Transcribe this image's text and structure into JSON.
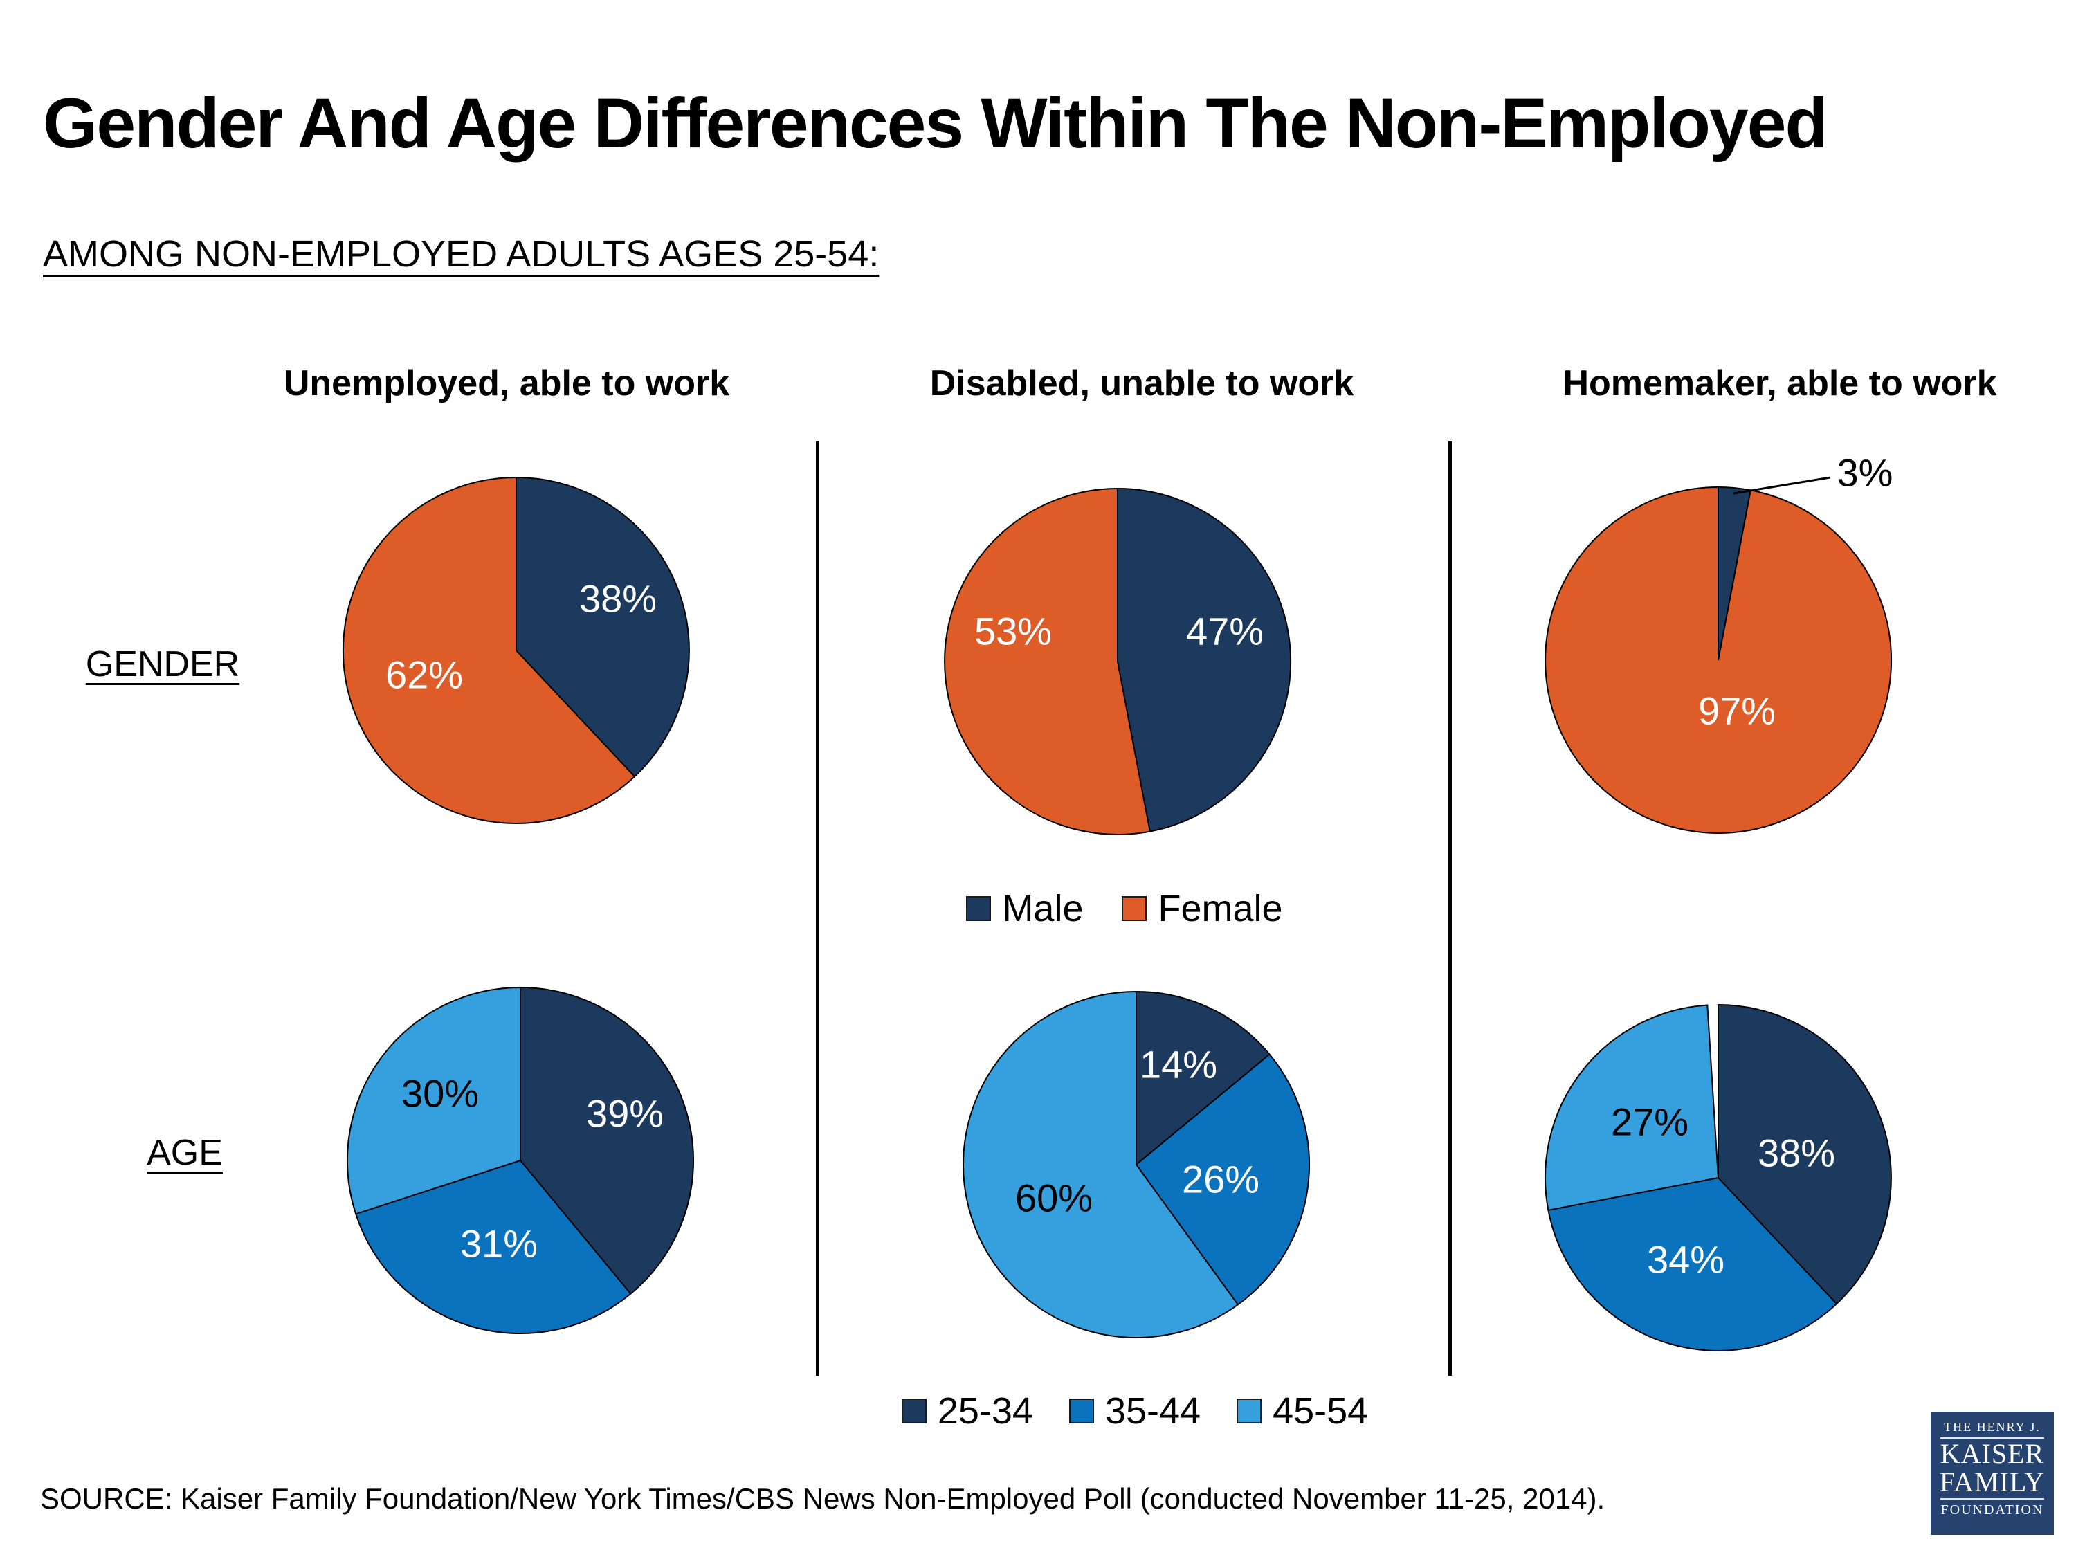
{
  "title": "Gender And Age Differences Within The Non-Employed",
  "subtitle": "AMONG NON-EMPLOYED ADULTS AGES 25-54:",
  "columns": [
    "Unemployed, able to work",
    "Disabled, unable to work",
    "Homemaker, able to work"
  ],
  "rows": [
    "GENDER",
    "AGE"
  ],
  "legend_gender": [
    {
      "label": "Male",
      "color": "#1C3A5E"
    },
    {
      "label": "Female",
      "color": "#DD5C27"
    }
  ],
  "legend_age": [
    {
      "label": "25-34",
      "color": "#1C3A5E"
    },
    {
      "label": "35-44",
      "color": "#0B72BE"
    },
    {
      "label": "45-54",
      "color": "#36A0DF"
    }
  ],
  "source": "SOURCE: Kaiser Family Foundation/New York Times/CBS News Non-Employed Poll (conducted November 11-25, 2014).",
  "logo": {
    "line1": "THE HENRY J.",
    "line2": "KAISER",
    "line3": "FAMILY",
    "line4": "FOUNDATION",
    "background": "#25436E"
  },
  "chart_data": [
    {
      "type": "pie",
      "id": "gender-unemployed",
      "row": "GENDER",
      "column": "Unemployed, able to work",
      "labels": [
        "Male",
        "Female"
      ],
      "values": [
        38,
        62
      ],
      "colors": [
        "#1C3A5E",
        "#DD5C27"
      ],
      "start_angle_deg": 0,
      "direction": "clockwise"
    },
    {
      "type": "pie",
      "id": "gender-disabled",
      "row": "GENDER",
      "column": "Disabled, unable to work",
      "labels": [
        "Male",
        "Female"
      ],
      "values": [
        47,
        53
      ],
      "colors": [
        "#1C3A5E",
        "#DD5C27"
      ],
      "start_angle_deg": 0,
      "direction": "clockwise"
    },
    {
      "type": "pie",
      "id": "gender-homemaker",
      "row": "GENDER",
      "column": "Homemaker, able to work",
      "labels": [
        "Male",
        "Female"
      ],
      "values": [
        3,
        97
      ],
      "colors": [
        "#1C3A5E",
        "#DD5C27"
      ],
      "start_angle_deg": 0,
      "direction": "clockwise"
    },
    {
      "type": "pie",
      "id": "age-unemployed",
      "row": "AGE",
      "column": "Unemployed, able to work",
      "labels": [
        "25-34",
        "35-44",
        "45-54"
      ],
      "values": [
        39,
        31,
        30
      ],
      "colors": [
        "#1C3A5E",
        "#0B72BE",
        "#36A0DF"
      ],
      "start_angle_deg": 0,
      "direction": "clockwise"
    },
    {
      "type": "pie",
      "id": "age-disabled",
      "row": "AGE",
      "column": "Disabled, unable to work",
      "labels": [
        "25-34",
        "35-44",
        "45-54"
      ],
      "values": [
        14,
        26,
        60
      ],
      "colors": [
        "#1C3A5E",
        "#0B72BE",
        "#36A0DF"
      ],
      "start_angle_deg": 0,
      "direction": "clockwise"
    },
    {
      "type": "pie",
      "id": "age-homemaker",
      "row": "AGE",
      "column": "Homemaker, able to work",
      "labels": [
        "25-34",
        "35-44",
        "45-54"
      ],
      "values": [
        38,
        34,
        27
      ],
      "colors": [
        "#1C3A5E",
        "#0B72BE",
        "#36A0DF"
      ],
      "start_angle_deg": 0,
      "direction": "clockwise"
    }
  ]
}
